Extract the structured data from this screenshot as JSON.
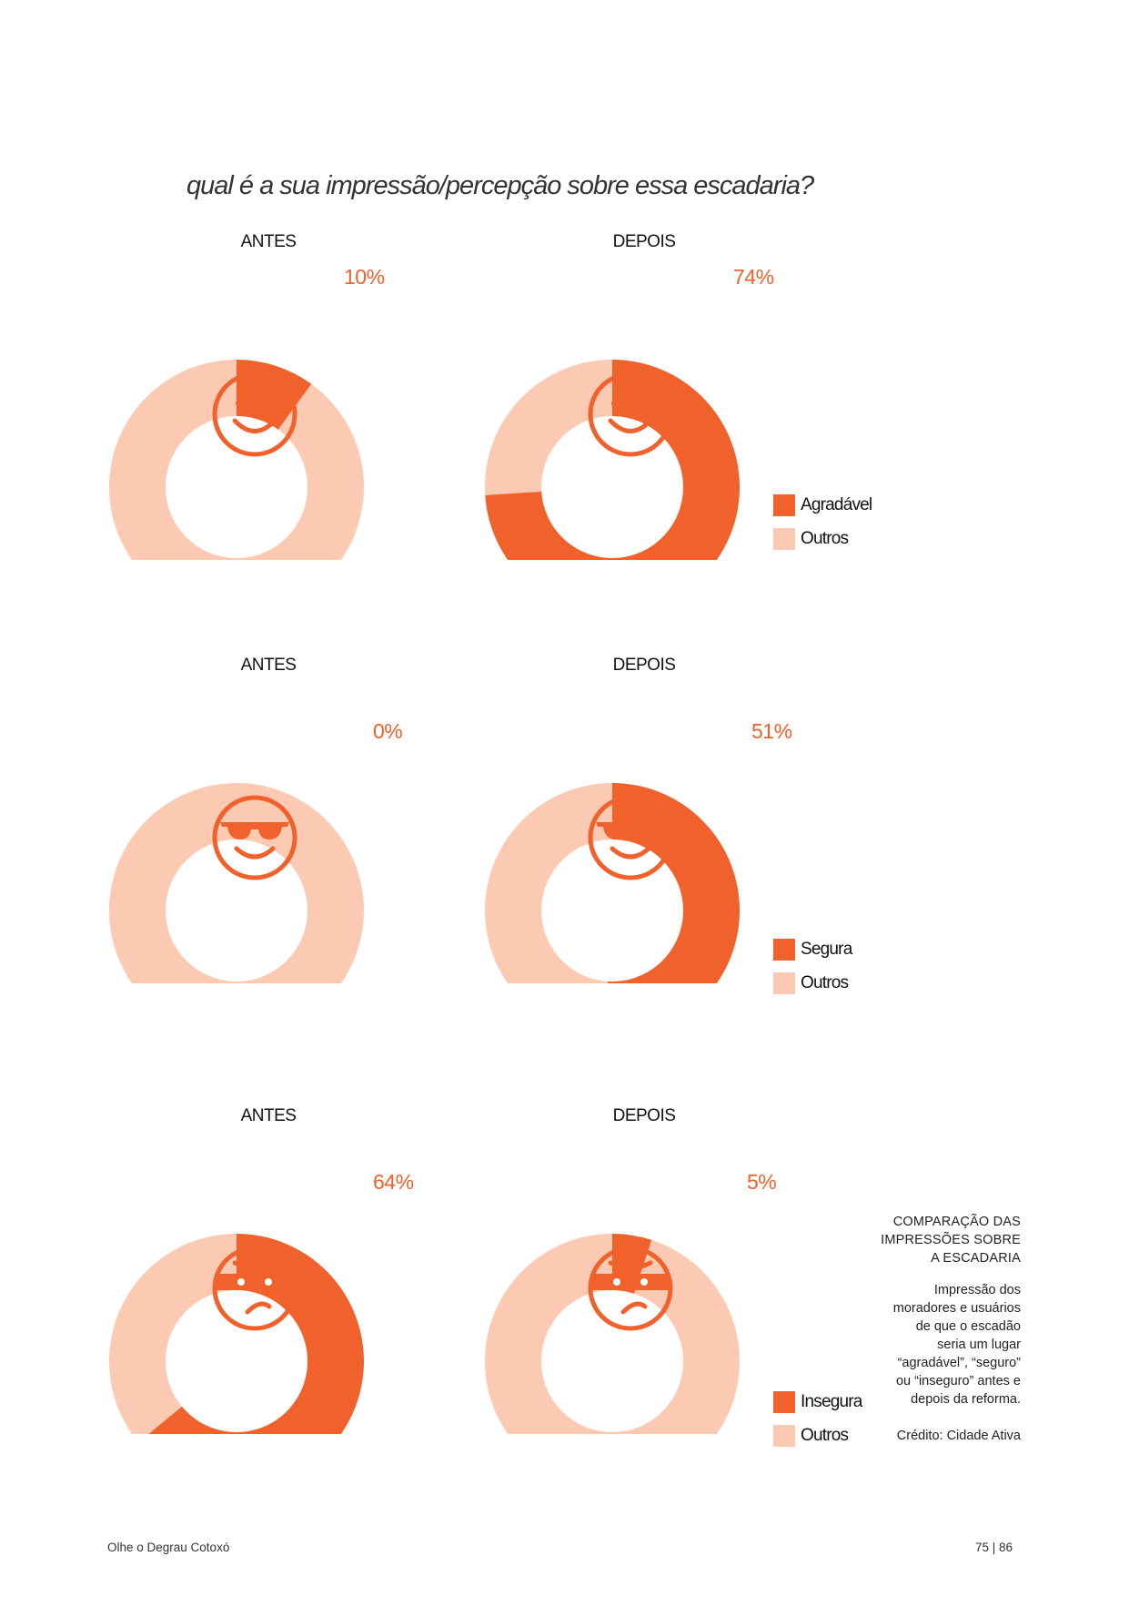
{
  "title": "qual é a sua impressão/percepção sobre essa escadaria?",
  "colors": {
    "highlight": "#f0612c",
    "rest": "#fccab2",
    "face": "#f0612c"
  },
  "chart_data": [
    {
      "type": "pie",
      "style": "donut",
      "label": "ANTES",
      "percent_label": "10%",
      "icon": "smile-icon",
      "slices": [
        {
          "name": "Agradável",
          "value": 10
        },
        {
          "name": "Outros",
          "value": 90
        }
      ]
    },
    {
      "type": "pie",
      "style": "donut",
      "label": "DEPOIS",
      "percent_label": "74%",
      "icon": "smile-icon",
      "slices": [
        {
          "name": "Agradável",
          "value": 74
        },
        {
          "name": "Outros",
          "value": 26
        }
      ],
      "legend": [
        "Agradável",
        "Outros"
      ]
    },
    {
      "type": "pie",
      "style": "donut",
      "label": "ANTES",
      "percent_label": "0%",
      "icon": "sunglasses-face-icon",
      "slices": [
        {
          "name": "Segura",
          "value": 0
        },
        {
          "name": "Outros",
          "value": 100
        }
      ]
    },
    {
      "type": "pie",
      "style": "donut",
      "label": "DEPOIS",
      "percent_label": "51%",
      "icon": "sunglasses-face-icon",
      "slices": [
        {
          "name": "Segura",
          "value": 51
        },
        {
          "name": "Outros",
          "value": 49
        }
      ],
      "legend": [
        "Segura",
        "Outros"
      ]
    },
    {
      "type": "pie",
      "style": "donut",
      "label": "ANTES",
      "percent_label": "64%",
      "icon": "masked-face-icon",
      "slices": [
        {
          "name": "Insegura",
          "value": 64
        },
        {
          "name": "Outros",
          "value": 36
        }
      ]
    },
    {
      "type": "pie",
      "style": "donut",
      "label": "DEPOIS",
      "percent_label": "5%",
      "icon": "masked-face-icon",
      "slices": [
        {
          "name": "Insegura",
          "value": 5
        },
        {
          "name": "Outros",
          "value": 95
        }
      ],
      "legend": [
        "Insegura",
        "Outros"
      ]
    }
  ],
  "note": {
    "heading_lines": [
      "COMPARAÇÃO DAS",
      "IMPRESSÕES SOBRE",
      "A ESCADARIA"
    ],
    "body_lines": [
      "Impressão dos",
      "moradores e usuários",
      "de que o escadão",
      "seria um lugar",
      "“agradável”, “seguro”",
      "ou “inseguro” antes e",
      "depois da reforma."
    ],
    "credit": "Crédito: Cidade Ativa"
  },
  "footer": {
    "left": "Olhe o Degrau Cotoxó",
    "right": "75 | 86"
  }
}
